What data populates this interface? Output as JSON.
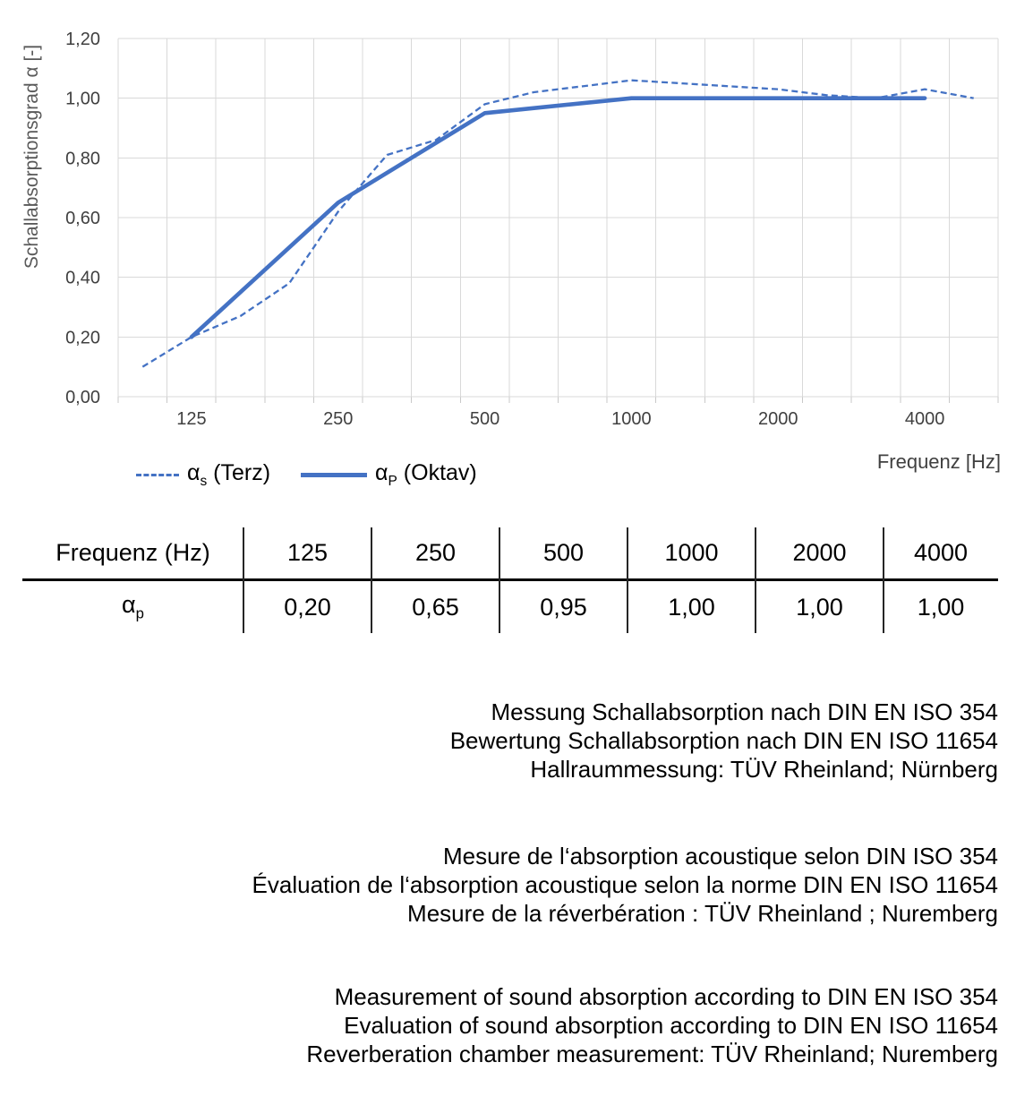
{
  "chart_data": {
    "type": "line",
    "title": "",
    "ylabel": "Schallabsorptionsgrad α [-]",
    "xlabel": "Frequenz [Hz]",
    "ylim": [
      0,
      1.2
    ],
    "y_tick_step": 0.2,
    "x_scale": "third-octave bands (logarithmic)",
    "grid": true,
    "legend_position": "bottom-left",
    "categories": [
      100,
      125,
      160,
      200,
      250,
      315,
      400,
      500,
      630,
      800,
      1000,
      1250,
      1600,
      2000,
      2500,
      3150,
      4000,
      5000
    ],
    "x_tick_labels": [
      "125",
      "250",
      "500",
      "1000",
      "2000",
      "4000"
    ],
    "x_tick_band_indices": [
      1,
      4,
      7,
      10,
      13,
      16
    ],
    "y_tick_labels": [
      "0,00",
      "0,20",
      "0,40",
      "0,60",
      "0,80",
      "1,00",
      "1,20"
    ],
    "series": [
      {
        "name": "αs (Terz)",
        "style": "dashed",
        "band_indices": [
          0,
          1,
          2,
          3,
          4,
          5,
          6,
          7,
          8,
          9,
          10,
          11,
          12,
          13,
          14,
          15,
          16,
          17
        ],
        "values": [
          0.1,
          0.2,
          0.27,
          0.38,
          0.62,
          0.81,
          0.86,
          0.98,
          1.02,
          1.04,
          1.06,
          1.05,
          1.04,
          1.03,
          1.01,
          1.0,
          1.03,
          1.0
        ]
      },
      {
        "name": "αP (Oktav)",
        "style": "solid",
        "band_indices": [
          1,
          4,
          7,
          10,
          13,
          16
        ],
        "values": [
          0.2,
          0.65,
          0.95,
          1.0,
          1.0,
          1.0
        ]
      }
    ],
    "colors": {
      "series_blue": "#4472C4",
      "gridline": "#D9D9D9",
      "axis_label": "#404040",
      "axis_title": "#595959"
    }
  },
  "axis": {
    "y_title": "Schallabsorptionsgrad α [-]",
    "x_title": "Frequenz [Hz]"
  },
  "legend": {
    "items": [
      {
        "symbol": "α",
        "sub": "s",
        "label": "(Terz)",
        "style": "dashed"
      },
      {
        "symbol": "α",
        "sub": "P",
        "label": "(Oktav)",
        "style": "solid"
      }
    ]
  },
  "table": {
    "headers": [
      "Frequenz (Hz)",
      "125",
      "250",
      "500",
      "1000",
      "2000",
      "4000"
    ],
    "row_label": {
      "symbol": "α",
      "sub": "p"
    },
    "values": [
      "0,20",
      "0,65",
      "0,95",
      "1,00",
      "1,00",
      "1,00"
    ]
  },
  "notes": {
    "de": [
      "Messung Schallabsorption nach DIN EN ISO 354",
      "Bewertung Schallabsorption nach DIN EN ISO 11654",
      "Hallraummessung: TÜV Rheinland; Nürnberg"
    ],
    "fr": [
      "Mesure de l‘absorption acoustique selon DIN ISO 354",
      "Évaluation de l‘absorption acoustique selon la norme DIN EN ISO 11654",
      "Mesure de la réverbération : TÜV Rheinland ; Nuremberg"
    ],
    "en": [
      "Measurement of sound absorption according to DIN EN ISO 354",
      "Evaluation of sound absorption according to DIN EN ISO 11654",
      "Reverberation chamber measurement: TÜV Rheinland; Nuremberg"
    ]
  }
}
